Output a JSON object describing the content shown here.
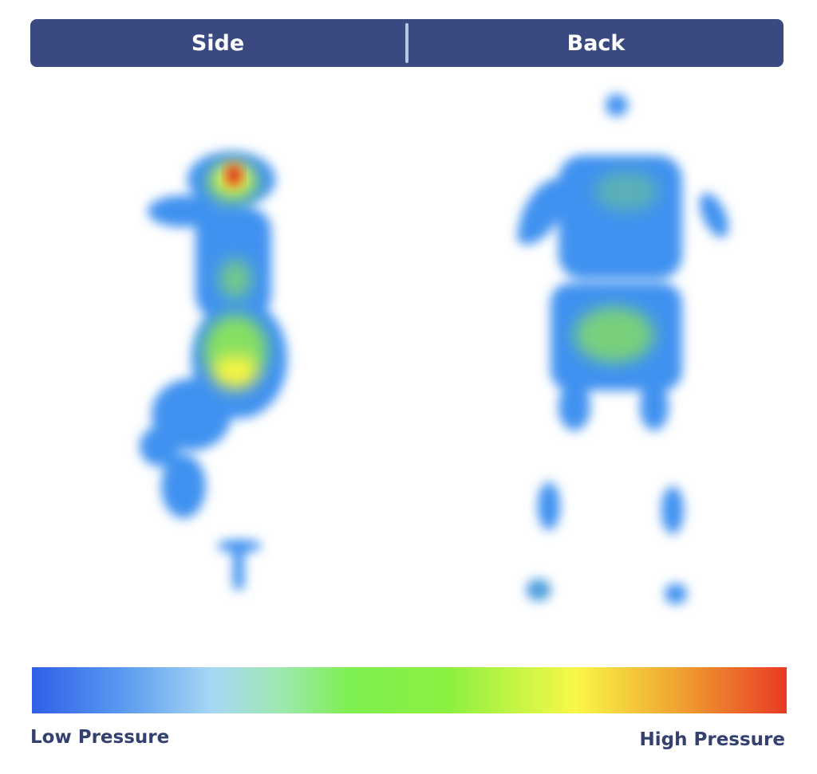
{
  "tabs": [
    {
      "label": "Side"
    },
    {
      "label": "Back"
    }
  ],
  "legend": {
    "low_label": "Low Pressure",
    "high_label": "High Pressure",
    "colors": [
      "#2f5fe8",
      "#a8d8f4",
      "#7ef050",
      "#f8f848",
      "#e83a25"
    ]
  },
  "heatmap": {
    "low_color": "#3f92f0",
    "mid_color": "#86e060",
    "high_color": "#f6f640",
    "peak_color": "#e0301e"
  }
}
